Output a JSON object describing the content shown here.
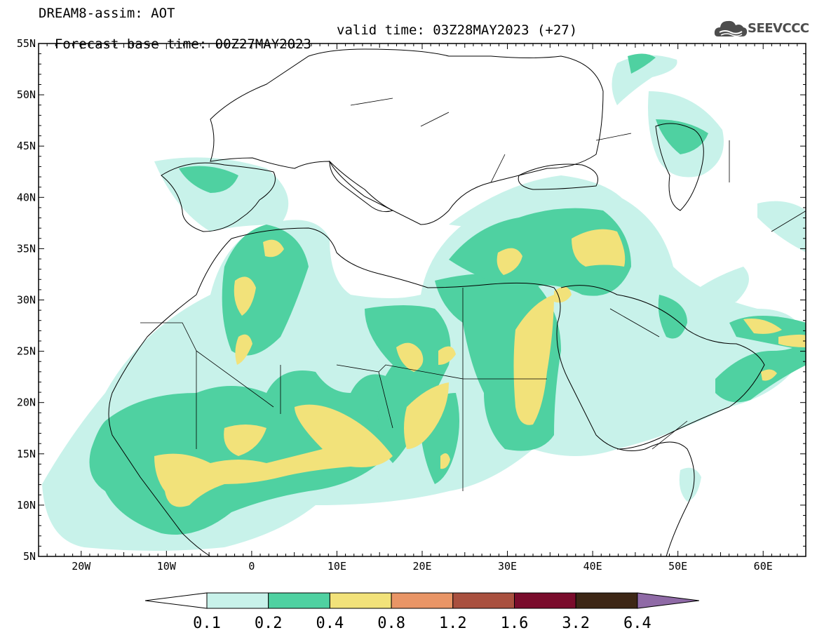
{
  "header": {
    "model_title": "DREAM8-assim: AOT",
    "base_time": "Forecast base time: 00Z27MAY2023",
    "valid_time": "valid time: 03Z28MAY2023 (+27)"
  },
  "logo": {
    "text": "SEEVCCC",
    "icon": "cloud-logo-icon"
  },
  "map": {
    "lat_labels": [
      "55N",
      "50N",
      "45N",
      "40N",
      "35N",
      "30N",
      "25N",
      "20N",
      "15N",
      "10N",
      "5N"
    ],
    "lon_labels": [
      "20W",
      "10W",
      "0",
      "10E",
      "20E",
      "30E",
      "40E",
      "50E",
      "60E"
    ],
    "extent": {
      "lon_min": -25,
      "lon_max": 65,
      "lat_min": 5,
      "lat_max": 55
    }
  },
  "colorbar": {
    "levels": [
      "0.1",
      "0.2",
      "0.4",
      "0.8",
      "1.2",
      "1.6",
      "3.2",
      "6.4"
    ],
    "colors": [
      "#ffffff",
      "#c8f2ea",
      "#4fd1a1",
      "#f2e27a",
      "#e99566",
      "#a9503f",
      "#7a0c2c",
      "#3d2716",
      "#8f6aa6"
    ]
  }
}
